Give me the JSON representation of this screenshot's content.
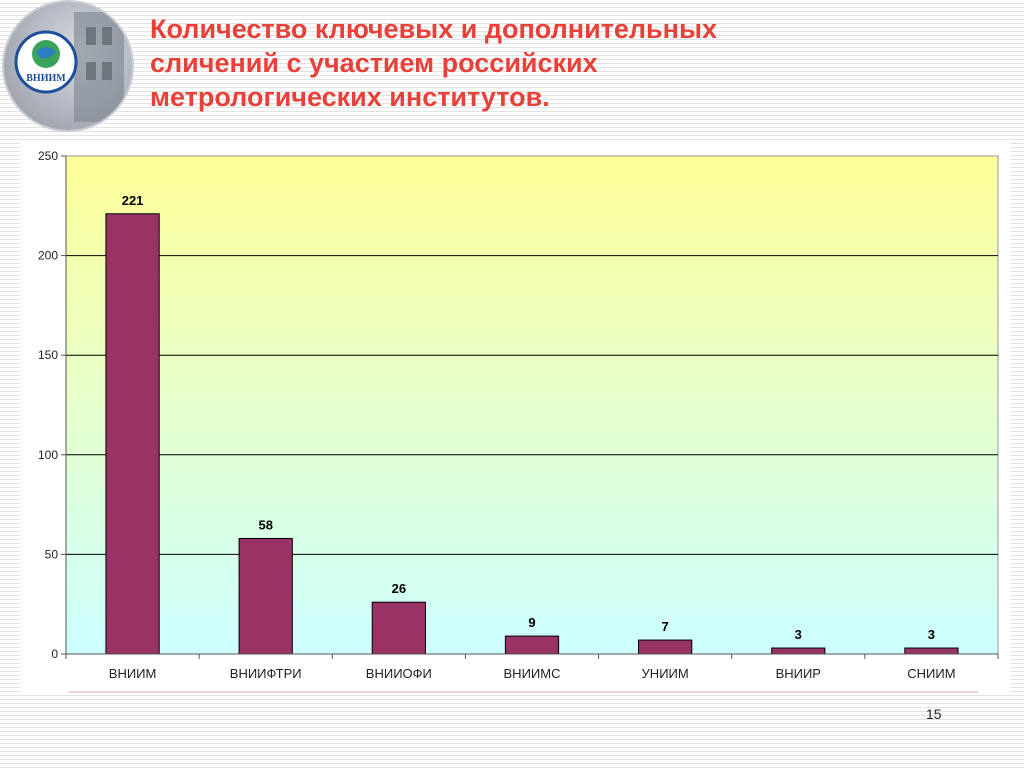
{
  "slide": {
    "title_lines": [
      "Количество ключевых и дополнительных",
      "сличений с участием российских",
      "метрологических институтов."
    ],
    "page_number": "15",
    "logo_text": "ВНИИМ"
  },
  "colors": {
    "title": "#e8413a",
    "bar": "#993366",
    "bg_top": "#ffff99",
    "bg_bottom": "#ccffff"
  },
  "chart_data": {
    "type": "bar",
    "title": "",
    "xlabel": "",
    "ylabel": "",
    "categories": [
      "ВНИИМ",
      "ВНИИФТРИ",
      "ВНИИОФИ",
      "ВНИИМС",
      "УНИИМ",
      "ВНИИР",
      "СНИИМ"
    ],
    "values": [
      221,
      58,
      26,
      9,
      7,
      3,
      3
    ],
    "ylim": [
      0,
      250
    ],
    "yticks": [
      0,
      50,
      100,
      150,
      200,
      250
    ],
    "grid": true,
    "data_labels": true,
    "legend": "none"
  }
}
